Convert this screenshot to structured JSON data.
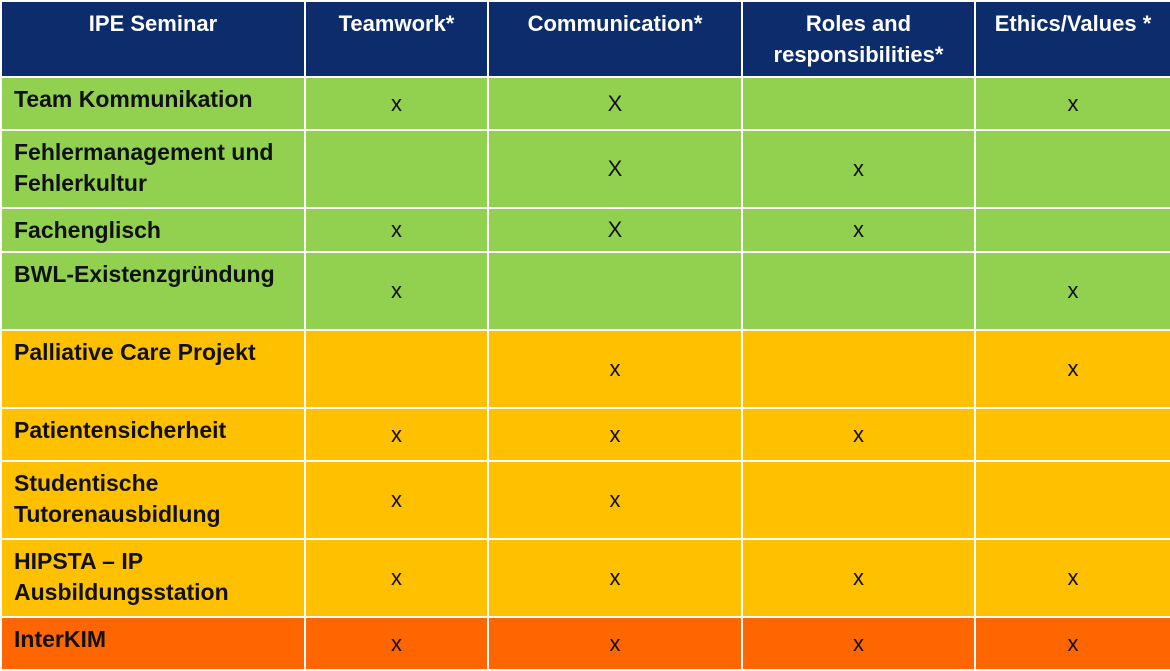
{
  "headers": [
    "IPE Seminar",
    "Teamwork*",
    "Communication*",
    "Roles and responsibilities*",
    "Ethics/Values *"
  ],
  "rows": [
    {
      "name": "Team Kommunikation",
      "color": "#92d050",
      "marks": [
        "x",
        "X",
        "",
        "x"
      ]
    },
    {
      "name": "Fehlermanagement und Fehlerkultur",
      "color": "#92d050",
      "marks": [
        "",
        "X",
        "x",
        ""
      ]
    },
    {
      "name": "Fachenglisch",
      "color": "#92d050",
      "marks": [
        "x",
        "X",
        "x",
        ""
      ]
    },
    {
      "name": "BWL-Existenzgründung",
      "color": "#92d050",
      "marks": [
        "x",
        "",
        "",
        "x"
      ]
    },
    {
      "name": "Palliative Care Projekt",
      "color": "#ffc000",
      "marks": [
        "",
        "x",
        "",
        "x"
      ]
    },
    {
      "name": "Patientensicherheit",
      "color": "#ffc000",
      "marks": [
        "x",
        "x",
        "x",
        ""
      ]
    },
    {
      "name": "Studentische Tutorenausbidlung",
      "color": "#ffc000",
      "marks": [
        "x",
        "x",
        "",
        ""
      ]
    },
    {
      "name": "HIPSTA – IP Ausbildungsstation",
      "color": "#ffc000",
      "marks": [
        "x",
        "x",
        "x",
        "x"
      ]
    },
    {
      "name": "InterKIM",
      "color": "#ff6600",
      "marks": [
        "x",
        "x",
        "x",
        "x"
      ]
    }
  ],
  "colors": {
    "header_bg": "#0c2c6b",
    "green": "#92d050",
    "yellow": "#ffc000",
    "orange": "#ff6600"
  }
}
